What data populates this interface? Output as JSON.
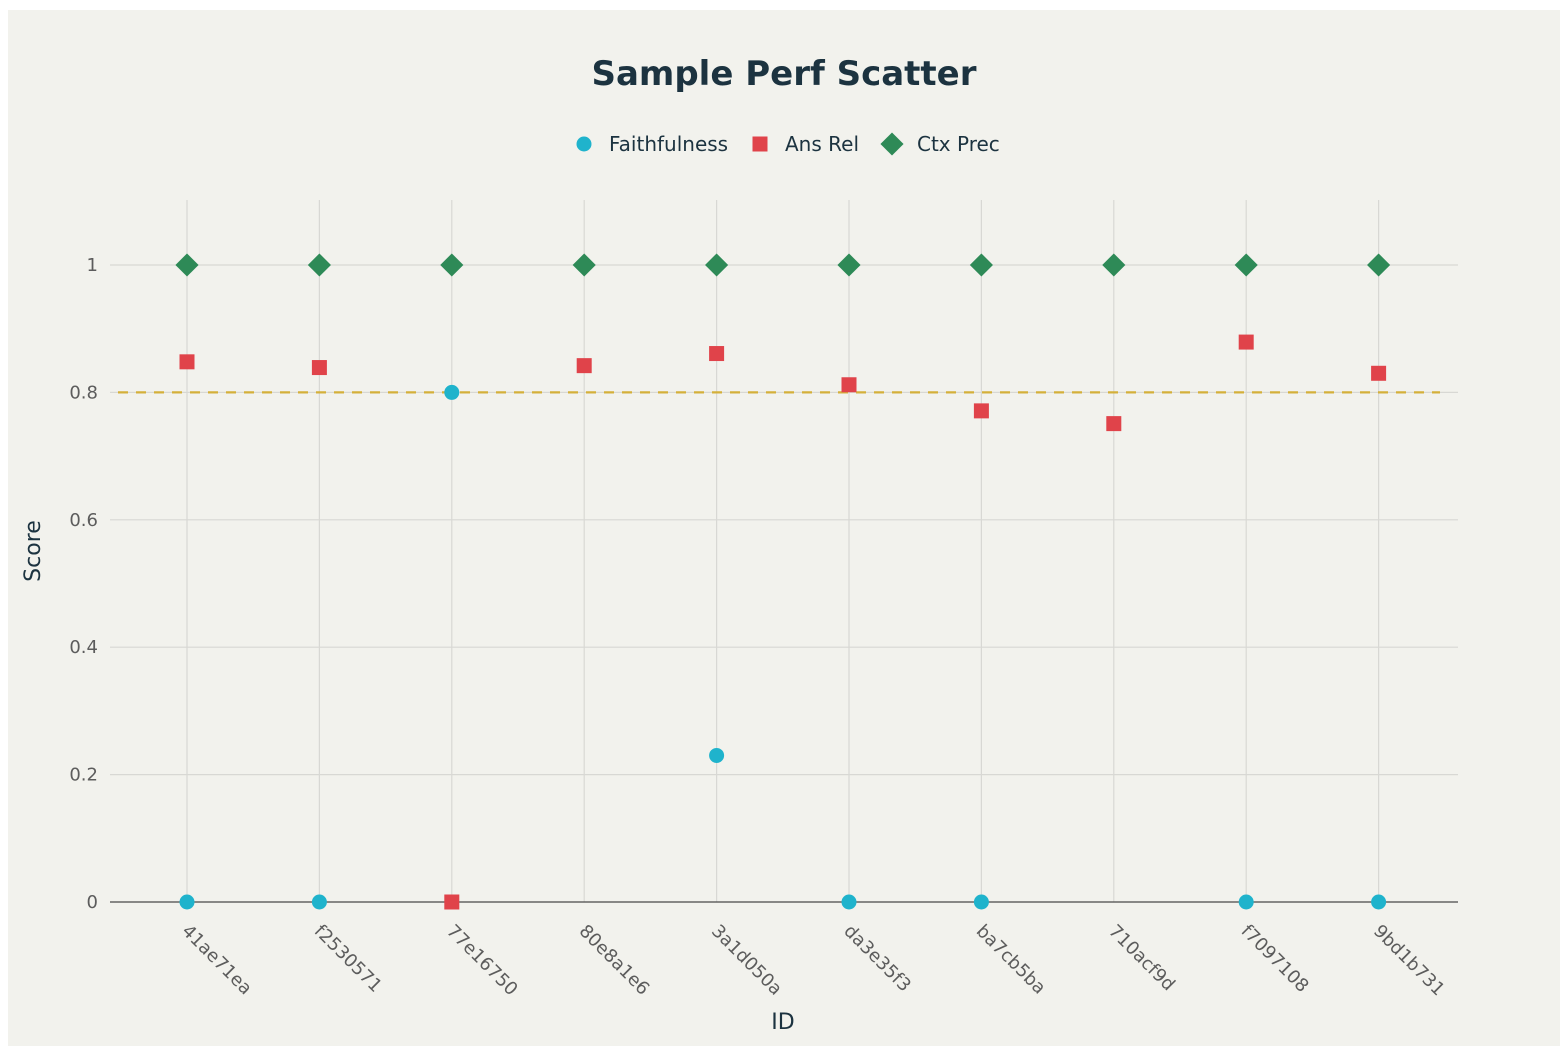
{
  "chart_data": {
    "type": "scatter",
    "title": "Sample Perf Scatter",
    "xlabel": "ID",
    "ylabel": "Score",
    "categories": [
      "41ae71ea",
      "f2530571",
      "77e16750",
      "80e8a1e6",
      "3a1d050a",
      "da3e35f3",
      "ba7cb5ba",
      "710acf9d",
      "f7097108",
      "9bd1b731"
    ],
    "ylim": [
      -0.05,
      1.1
    ],
    "yticks": [
      0,
      0.2,
      0.4,
      0.6,
      0.8,
      1
    ],
    "ytick_labels": [
      "0",
      "0.2",
      "0.4",
      "0.6",
      "0.8",
      "1"
    ],
    "reference_line": {
      "y": 0.8,
      "style": "dashed",
      "color": "#d4b03a"
    },
    "grid": true,
    "legend_position": "top-center",
    "series": [
      {
        "name": "Faithfulness",
        "marker": "circle",
        "color": "#1fb3cc",
        "values": [
          0,
          0,
          0.8,
          null,
          0.23,
          0,
          0,
          null,
          0,
          0
        ]
      },
      {
        "name": "Ans Rel",
        "marker": "square",
        "color": "#e0434a",
        "values": [
          0.848,
          0.839,
          0,
          0.842,
          0.861,
          0.812,
          0.771,
          0.751,
          0.879,
          0.83
        ]
      },
      {
        "name": "Ctx Prec",
        "marker": "diamond",
        "color": "#2e8a57",
        "values": [
          1,
          1,
          1,
          1,
          1,
          1,
          1,
          1,
          1,
          1
        ]
      }
    ]
  }
}
